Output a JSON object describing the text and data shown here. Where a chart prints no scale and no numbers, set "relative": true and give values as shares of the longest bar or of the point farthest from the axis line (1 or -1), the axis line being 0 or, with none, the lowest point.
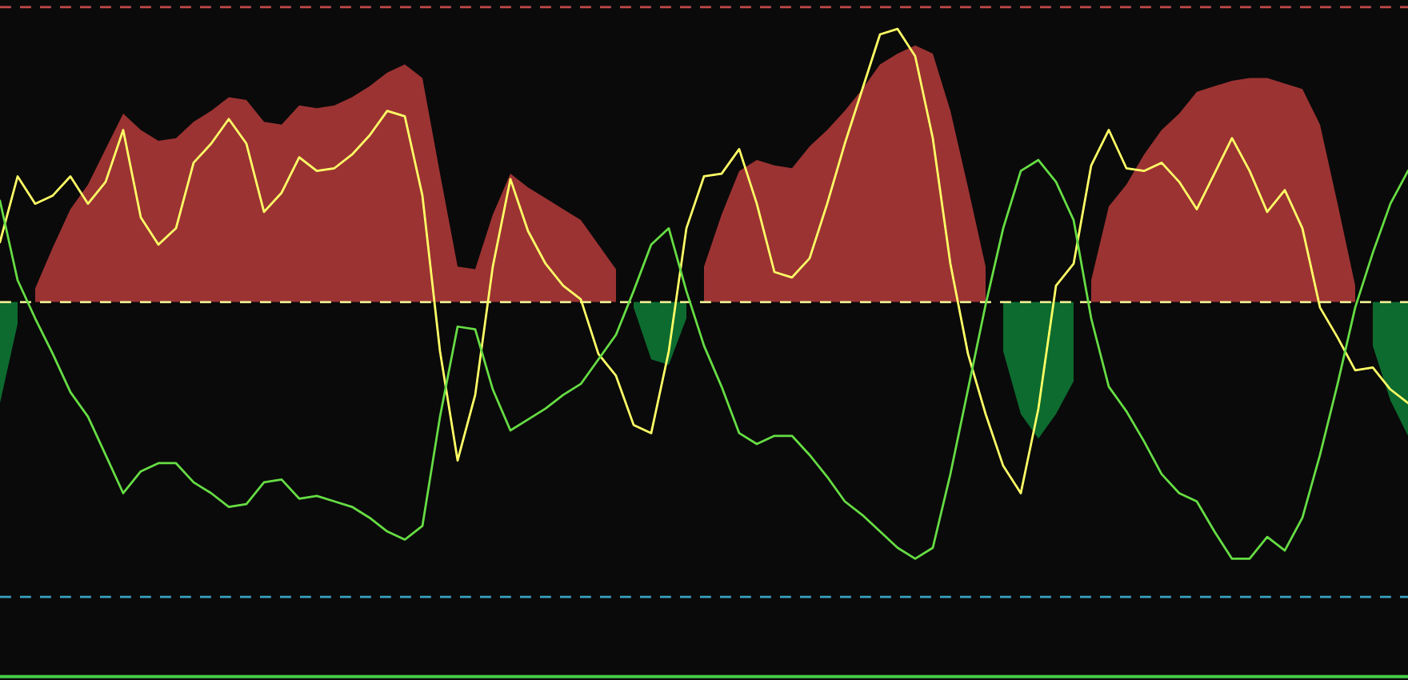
{
  "chart_data": {
    "type": "line",
    "relative": true,
    "categories": [
      null,
      null,
      null,
      null,
      null,
      null,
      null,
      null,
      null,
      null,
      null,
      null,
      null,
      null,
      null,
      null,
      null,
      null,
      null,
      null,
      null,
      null,
      null,
      null,
      null,
      null,
      null,
      null,
      null,
      null,
      null,
      null,
      null,
      null,
      null,
      null,
      null,
      null,
      null,
      null,
      null,
      null,
      null,
      null,
      null,
      null,
      null,
      null,
      null,
      null,
      null,
      null,
      null,
      null,
      null,
      null,
      null,
      null,
      null,
      null,
      null,
      null,
      null,
      null,
      null,
      null,
      null,
      null,
      null,
      null,
      null,
      null,
      null,
      null,
      null,
      null,
      null,
      null,
      null,
      null,
      null
    ],
    "series": [
      {
        "type": "area",
        "color": "#9b3333",
        "values": [
          null,
          null,
          0.05,
          0.2,
          0.34,
          0.43,
          0.56,
          0.69,
          0.63,
          0.59,
          0.6,
          0.66,
          0.7,
          0.75,
          0.74,
          0.66,
          0.65,
          0.72,
          0.71,
          0.72,
          0.75,
          0.79,
          0.84,
          0.87,
          0.82,
          0.47,
          0.13,
          0.12,
          0.32,
          0.47,
          0.42,
          0.38,
          0.34,
          0.3,
          0.21,
          0.12,
          null,
          null,
          null,
          null,
          0.13,
          0.32,
          0.48,
          0.52,
          0.5,
          0.49,
          0.57,
          0.63,
          0.7,
          0.78,
          0.87,
          0.91,
          0.94,
          0.91,
          0.7,
          0.42,
          0.13,
          null,
          null,
          null,
          null,
          null,
          0.08,
          0.35,
          0.43,
          0.54,
          0.63,
          0.69,
          0.77,
          0.79,
          0.81,
          0.82,
          0.82,
          0.8,
          0.78,
          0.65,
          0.36,
          0.06,
          null,
          null,
          null
        ]
      },
      {
        "type": "area",
        "color": "#0d6b2f",
        "values": [
          -0.37,
          -0.08,
          null,
          null,
          null,
          null,
          null,
          null,
          null,
          null,
          null,
          null,
          null,
          null,
          null,
          null,
          null,
          null,
          null,
          null,
          null,
          null,
          null,
          null,
          null,
          null,
          null,
          null,
          null,
          null,
          null,
          null,
          null,
          null,
          null,
          null,
          -0.02,
          -0.21,
          -0.23,
          -0.06,
          null,
          null,
          null,
          null,
          null,
          null,
          null,
          null,
          null,
          null,
          null,
          null,
          null,
          null,
          null,
          null,
          null,
          -0.18,
          -0.41,
          -0.5,
          -0.41,
          -0.29,
          null,
          null,
          null,
          null,
          null,
          null,
          null,
          null,
          null,
          null,
          null,
          null,
          null,
          null,
          null,
          null,
          -0.16,
          -0.36,
          -0.49
        ]
      },
      {
        "color": "#ffff66",
        "values": [
          0.22,
          0.46,
          0.36,
          0.39,
          0.46,
          0.36,
          0.44,
          0.63,
          0.31,
          0.21,
          0.27,
          0.51,
          0.58,
          0.67,
          0.58,
          0.33,
          0.4,
          0.53,
          0.48,
          0.49,
          0.54,
          0.61,
          0.7,
          0.68,
          0.39,
          -0.18,
          -0.58,
          -0.34,
          0.13,
          0.45,
          0.26,
          0.14,
          0.06,
          0.01,
          -0.19,
          -0.27,
          -0.45,
          -0.48,
          -0.18,
          0.27,
          0.46,
          0.47,
          0.56,
          0.36,
          0.11,
          0.09,
          0.16,
          0.36,
          0.58,
          0.78,
          0.98,
          1.0,
          0.9,
          0.6,
          0.14,
          -0.19,
          -0.41,
          -0.6,
          -0.7,
          -0.39,
          0.06,
          0.14,
          0.5,
          0.63,
          0.49,
          0.48,
          0.51,
          0.44,
          0.34,
          0.47,
          0.6,
          0.48,
          0.33,
          0.41,
          0.27,
          -0.02,
          -0.13,
          -0.25,
          -0.24,
          -0.32,
          -0.37
        ]
      },
      {
        "color": "#66dd44",
        "values": [
          0.37,
          0.08,
          -0.06,
          -0.19,
          -0.33,
          -0.42,
          -0.56,
          -0.7,
          -0.62,
          -0.59,
          -0.59,
          -0.66,
          -0.7,
          -0.75,
          -0.74,
          -0.66,
          -0.65,
          -0.72,
          -0.71,
          -0.73,
          -0.75,
          -0.79,
          -0.84,
          -0.87,
          -0.82,
          -0.42,
          -0.09,
          -0.1,
          -0.32,
          -0.47,
          -0.43,
          -0.39,
          -0.34,
          -0.3,
          -0.21,
          -0.12,
          0.04,
          0.21,
          0.27,
          0.04,
          -0.16,
          -0.31,
          -0.48,
          -0.52,
          -0.49,
          -0.49,
          -0.56,
          -0.64,
          -0.73,
          -0.78,
          -0.84,
          -0.9,
          -0.94,
          -0.9,
          -0.63,
          -0.32,
          -0.01,
          0.27,
          0.48,
          0.52,
          0.44,
          0.3,
          -0.06,
          -0.31,
          -0.4,
          -0.51,
          -0.63,
          -0.7,
          -0.73,
          -0.84,
          -0.94,
          -0.94,
          -0.86,
          -0.91,
          -0.79,
          -0.56,
          -0.3,
          -0.02,
          0.18,
          0.36,
          0.48
        ]
      }
    ],
    "ref_lines": [
      {
        "axis": "y",
        "value": 1.08,
        "color": "#c04848",
        "line_style": "dashed"
      },
      {
        "axis": "y",
        "value": 0,
        "color": "#e8e890",
        "line_style": "dashed"
      },
      {
        "axis": "y",
        "value": -1.08,
        "color": "#3aa0c0",
        "line_style": "dashed"
      }
    ]
  }
}
